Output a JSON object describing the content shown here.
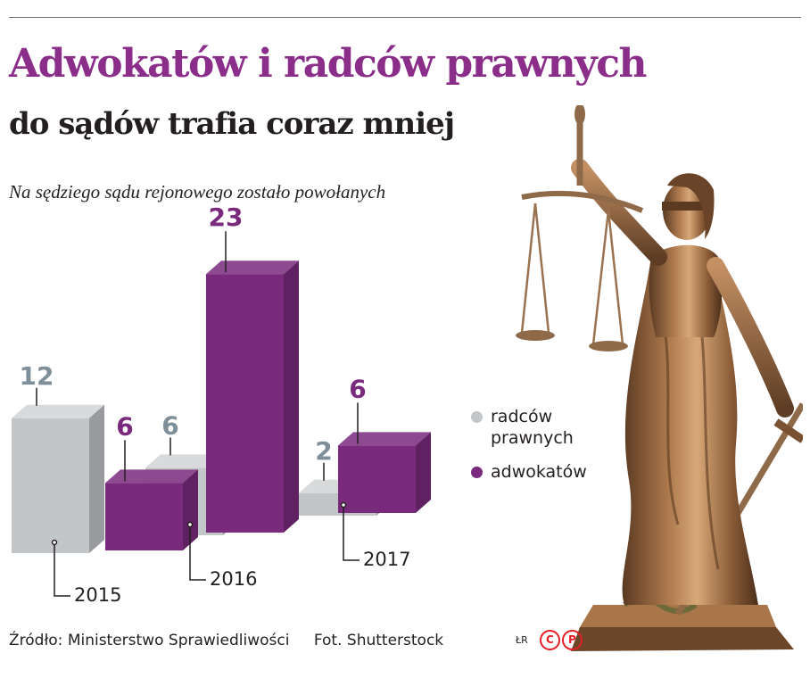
{
  "header": {
    "title": "Adwokatów i radców prawnych",
    "subtitle": "do sądów trafia coraz mniej"
  },
  "colors": {
    "title": "#8b2e8a",
    "radcy_face": "#c3c6c9",
    "adwokaci_face": "#7a2a7c",
    "radcy_label": "#7f8f99",
    "adwokaci_label": "#7a2a7c",
    "leader": "#231f20"
  },
  "chart_data": {
    "type": "bar",
    "title": "Na sędziego sądu rejonowego zostało powołanych",
    "categories": [
      "2015",
      "2016",
      "2017"
    ],
    "series": [
      {
        "name": "radców prawnych",
        "values": [
          12,
          6,
          2
        ]
      },
      {
        "name": "adwokatów",
        "values": [
          6,
          23,
          6
        ]
      }
    ],
    "legend_position": "right",
    "grid": false,
    "bar_style": "3d"
  },
  "legend": {
    "radcy": "radców prawnych",
    "adwokaci": "adwokatów"
  },
  "footer": {
    "source": "Źródło: Ministerstwo Sprawiedliwości",
    "photo": "Fot. Shutterstock",
    "initials": "ŁR",
    "brand_c": "C",
    "brand_p": "P"
  },
  "icons": {
    "statue": "lady-justice-icon"
  }
}
